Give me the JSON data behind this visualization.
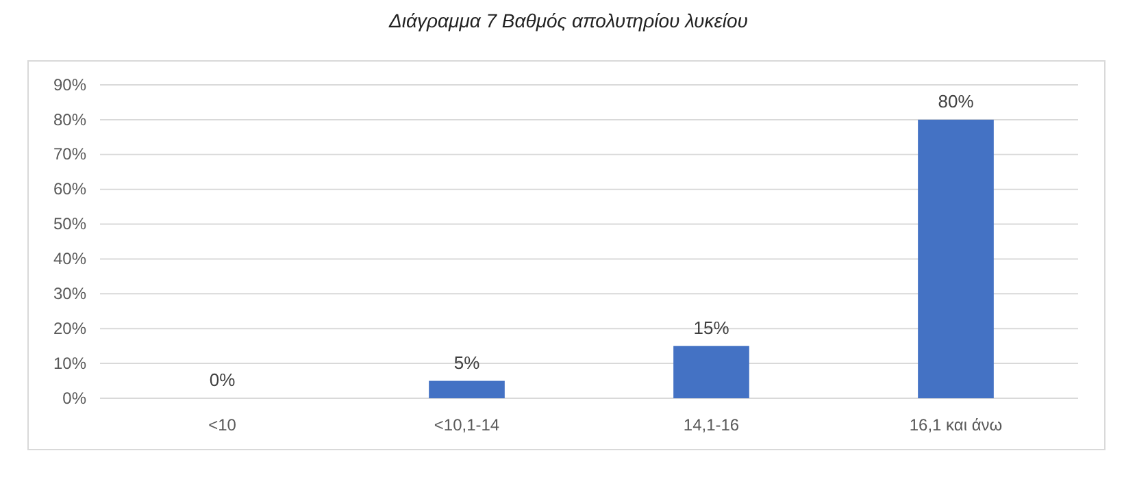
{
  "chart_data": {
    "type": "bar",
    "title": "Διάγραμμα 7 Βαθμός απολυτηρίου λυκείου",
    "categories": [
      "<10",
      "<10,1-14",
      "14,1-16",
      "16,1 και άνω"
    ],
    "values": [
      0,
      5,
      15,
      80
    ],
    "color": "#4472c4",
    "value_labels": [
      "0%",
      "5%",
      "15%",
      "80%"
    ],
    "ylim": [
      0,
      90
    ],
    "yticks": [
      {
        "value": 0,
        "label": "0%"
      },
      {
        "value": 10,
        "label": "10%"
      },
      {
        "value": 20,
        "label": "20%"
      },
      {
        "value": 30,
        "label": "30%"
      },
      {
        "value": 40,
        "label": "40%"
      },
      {
        "value": 50,
        "label": "50%"
      },
      {
        "value": 60,
        "label": "60%"
      },
      {
        "value": 70,
        "label": "70%"
      },
      {
        "value": 80,
        "label": "80%"
      },
      {
        "value": 90,
        "label": "90%"
      }
    ],
    "grid": "y"
  }
}
